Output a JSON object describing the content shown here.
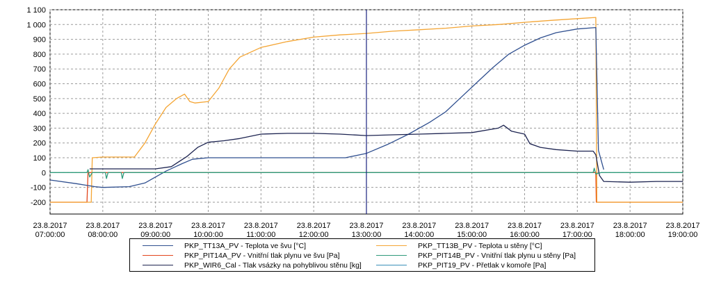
{
  "chart_data": {
    "type": "line",
    "grid": true,
    "ylim": [
      -280,
      1100
    ],
    "y_ticks": [
      "1 100",
      "1 000",
      "900",
      "800",
      "700",
      "600",
      "500",
      "400",
      "300",
      "200",
      "100",
      "0",
      "-100",
      "-200"
    ],
    "y_tick_values": [
      1100,
      1000,
      900,
      800,
      700,
      600,
      500,
      400,
      300,
      200,
      100,
      0,
      -100,
      -200
    ],
    "x_range_hours": [
      7,
      19
    ],
    "x_ticks": [
      {
        "date": "23.8.2017",
        "time": "07:00:00",
        "hour": 7
      },
      {
        "date": "23.8.2017",
        "time": "08:00:00",
        "hour": 8
      },
      {
        "date": "23.8.2017",
        "time": "09:00:00",
        "hour": 9
      },
      {
        "date": "23.8.2017",
        "time": "10:00:00",
        "hour": 10
      },
      {
        "date": "23.8.2017",
        "time": "11:00:00",
        "hour": 11
      },
      {
        "date": "23.8.2017",
        "time": "12:00:00",
        "hour": 12
      },
      {
        "date": "23.8.2017",
        "time": "13:00:00",
        "hour": 13
      },
      {
        "date": "23.8.2017",
        "time": "14:00:00",
        "hour": 14
      },
      {
        "date": "23.8.2017",
        "time": "15:00:00",
        "hour": 15
      },
      {
        "date": "23.8.2017",
        "time": "16:00:00",
        "hour": 16
      },
      {
        "date": "23.8.2017",
        "time": "17:00:00",
        "hour": 17
      },
      {
        "date": "23.8.2017",
        "time": "18:00:00",
        "hour": 18
      },
      {
        "date": "23.8.2017",
        "time": "19:00:00",
        "hour": 19
      }
    ],
    "cursor_hour": 13,
    "cursor_color": "#1a237e",
    "series": [
      {
        "name": "PKP_TT13A_PV  -  Teplota ve švu [°C]",
        "color": "#2f4f8f",
        "points": [
          [
            7.0,
            -50
          ],
          [
            7.5,
            -75
          ],
          [
            7.85,
            -95
          ],
          [
            8.0,
            -100
          ],
          [
            8.5,
            -95
          ],
          [
            8.8,
            -70
          ],
          [
            9.0,
            -30
          ],
          [
            9.2,
            10
          ],
          [
            9.5,
            60
          ],
          [
            9.7,
            90
          ],
          [
            10.0,
            100
          ],
          [
            11.0,
            100
          ],
          [
            12.0,
            100
          ],
          [
            12.6,
            100
          ],
          [
            13.0,
            130
          ],
          [
            13.4,
            190
          ],
          [
            13.8,
            260
          ],
          [
            14.2,
            340
          ],
          [
            14.5,
            410
          ],
          [
            14.8,
            510
          ],
          [
            15.1,
            610
          ],
          [
            15.4,
            710
          ],
          [
            15.7,
            800
          ],
          [
            16.0,
            860
          ],
          [
            16.3,
            910
          ],
          [
            16.6,
            945
          ],
          [
            17.0,
            970
          ],
          [
            17.35,
            980
          ],
          [
            17.4,
            150
          ],
          [
            17.5,
            20
          ]
        ]
      },
      {
        "name": "PKP_TT13B_PV  -  Teplota u stěny [°C]",
        "color": "#f4a534",
        "points": [
          [
            7.0,
            -200
          ],
          [
            7.78,
            -200
          ],
          [
            7.8,
            100
          ],
          [
            8.0,
            105
          ],
          [
            8.6,
            105
          ],
          [
            8.8,
            200
          ],
          [
            9.0,
            330
          ],
          [
            9.2,
            440
          ],
          [
            9.4,
            500
          ],
          [
            9.55,
            530
          ],
          [
            9.65,
            480
          ],
          [
            9.75,
            470
          ],
          [
            10.0,
            480
          ],
          [
            10.2,
            570
          ],
          [
            10.4,
            700
          ],
          [
            10.6,
            780
          ],
          [
            11.0,
            845
          ],
          [
            11.5,
            885
          ],
          [
            12.0,
            915
          ],
          [
            12.5,
            930
          ],
          [
            13.0,
            940
          ],
          [
            13.5,
            955
          ],
          [
            14.0,
            965
          ],
          [
            14.5,
            975
          ],
          [
            15.0,
            990
          ],
          [
            15.5,
            1000
          ],
          [
            16.0,
            1015
          ],
          [
            16.5,
            1028
          ],
          [
            17.0,
            1040
          ],
          [
            17.35,
            1048
          ],
          [
            17.37,
            -200
          ],
          [
            19.0,
            -200
          ]
        ]
      },
      {
        "name": "PKP_PIT14A_PV  -  Vnitřní tlak plynu ve švu [Pa]",
        "color": "#e2451c",
        "points": [
          [
            7.0,
            -200
          ],
          [
            7.7,
            -200
          ],
          [
            7.72,
            0
          ],
          [
            8.0,
            0
          ],
          [
            17.35,
            0
          ],
          [
            17.36,
            -200
          ],
          [
            19.0,
            -200
          ]
        ]
      },
      {
        "name": "PKP_PIT14B_PV  -  Vnitřní tlak plynu u stěny [Pa]",
        "color": "#2e9a7a",
        "points": [
          [
            7.0,
            0
          ],
          [
            7.7,
            0
          ],
          [
            7.72,
            20
          ],
          [
            7.75,
            -30
          ],
          [
            7.8,
            0
          ],
          [
            8.05,
            0
          ],
          [
            8.07,
            -40
          ],
          [
            8.1,
            0
          ],
          [
            8.35,
            0
          ],
          [
            8.37,
            -40
          ],
          [
            8.4,
            0
          ],
          [
            17.3,
            0
          ],
          [
            17.32,
            30
          ],
          [
            17.35,
            -10
          ],
          [
            17.45,
            0
          ],
          [
            19.0,
            0
          ]
        ]
      },
      {
        "name": "PKP_WIR6_Cal  -  Tlak vsázky na pohyblivou stěnu [kg]",
        "color": "#1c2350",
        "points": [
          [
            7.75,
            25
          ],
          [
            8.0,
            25
          ],
          [
            9.0,
            25
          ],
          [
            9.3,
            40
          ],
          [
            9.6,
            110
          ],
          [
            9.8,
            170
          ],
          [
            10.0,
            205
          ],
          [
            10.3,
            215
          ],
          [
            10.6,
            230
          ],
          [
            11.0,
            260
          ],
          [
            11.5,
            265
          ],
          [
            12.0,
            265
          ],
          [
            12.5,
            260
          ],
          [
            13.0,
            250
          ],
          [
            13.5,
            255
          ],
          [
            14.0,
            260
          ],
          [
            14.5,
            265
          ],
          [
            15.0,
            270
          ],
          [
            15.5,
            300
          ],
          [
            15.6,
            320
          ],
          [
            15.75,
            280
          ],
          [
            16.0,
            260
          ],
          [
            16.1,
            195
          ],
          [
            16.3,
            170
          ],
          [
            16.6,
            155
          ],
          [
            17.0,
            145
          ],
          [
            17.3,
            145
          ],
          [
            17.35,
            120
          ],
          [
            17.42,
            -20
          ],
          [
            17.5,
            -60
          ],
          [
            18.0,
            -65
          ],
          [
            18.5,
            -60
          ],
          [
            19.0,
            -60
          ]
        ]
      },
      {
        "name": "PKP_PIT19_PV  -  Přetlak v komoře [Pa]",
        "color": "#3a8fb8",
        "points": []
      }
    ]
  }
}
